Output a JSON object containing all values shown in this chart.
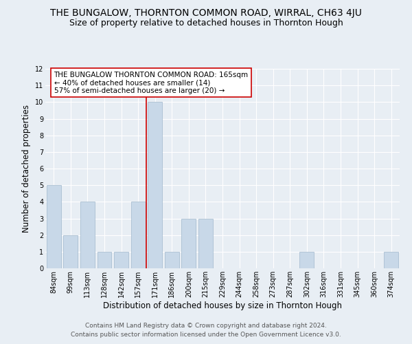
{
  "title": "THE BUNGALOW, THORNTON COMMON ROAD, WIRRAL, CH63 4JU",
  "subtitle": "Size of property relative to detached houses in Thornton Hough",
  "xlabel": "Distribution of detached houses by size in Thornton Hough",
  "ylabel": "Number of detached properties",
  "categories": [
    "84sqm",
    "99sqm",
    "113sqm",
    "128sqm",
    "142sqm",
    "157sqm",
    "171sqm",
    "186sqm",
    "200sqm",
    "215sqm",
    "229sqm",
    "244sqm",
    "258sqm",
    "273sqm",
    "287sqm",
    "302sqm",
    "316sqm",
    "331sqm",
    "345sqm",
    "360sqm",
    "374sqm"
  ],
  "values": [
    5,
    2,
    4,
    1,
    1,
    4,
    10,
    1,
    3,
    3,
    0,
    0,
    0,
    0,
    0,
    1,
    0,
    0,
    0,
    0,
    1
  ],
  "bar_color": "#c8d8e8",
  "bar_edgecolor": "#a0b8cc",
  "subject_line_color": "#cc0000",
  "annotation_text": "THE BUNGALOW THORNTON COMMON ROAD: 165sqm\n← 40% of detached houses are smaller (14)\n57% of semi-detached houses are larger (20) →",
  "annotation_box_color": "#ffffff",
  "annotation_box_edgecolor": "#cc0000",
  "ylim": [
    0,
    12
  ],
  "yticks": [
    0,
    1,
    2,
    3,
    4,
    5,
    6,
    7,
    8,
    9,
    10,
    11,
    12
  ],
  "background_color": "#e8eef4",
  "grid_color": "#ffffff",
  "footer1": "Contains HM Land Registry data © Crown copyright and database right 2024.",
  "footer2": "Contains public sector information licensed under the Open Government Licence v3.0.",
  "title_fontsize": 10,
  "subtitle_fontsize": 9,
  "axis_label_fontsize": 8.5,
  "tick_fontsize": 7,
  "annotation_fontsize": 7.5,
  "footer_fontsize": 6.5
}
